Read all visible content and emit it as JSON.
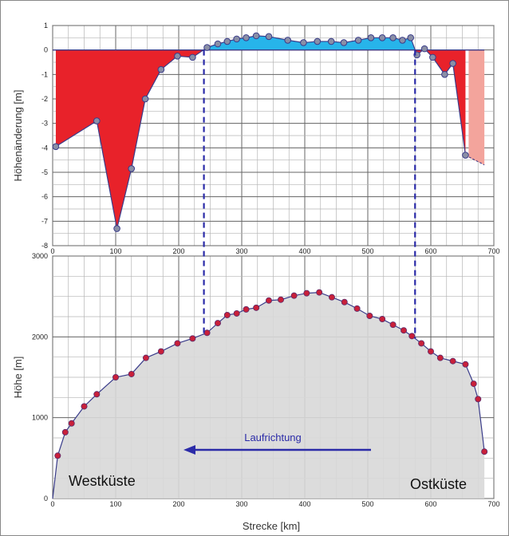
{
  "chart_data": [
    {
      "id": "top",
      "type": "area",
      "title": "",
      "xlabel": "",
      "ylabel": "Höhenänderung [m]",
      "xlim": [
        0,
        700
      ],
      "ylim": [
        -8,
        1
      ],
      "grid": true,
      "xticks": [
        0,
        100,
        200,
        300,
        400,
        500,
        600,
        700
      ],
      "xtick_labels": [
        "0",
        "100",
        "200",
        "300",
        "400",
        "500",
        "600",
        "700"
      ],
      "yticks": [
        1,
        0,
        -1,
        -2,
        -3,
        -4,
        -5,
        -6,
        -7,
        -8
      ],
      "ytick_labels": [
        "1",
        "0",
        "-1",
        "-2",
        "-3",
        "-4",
        "-5",
        "-6",
        "-7",
        "-8"
      ],
      "colors": {
        "negative": "#e8222a",
        "positive": "#27b4ea",
        "extrapolated": "#f3a49c",
        "marker": "#8a8fa6",
        "line": "#3a3c8a"
      },
      "series": [
        {
          "x": [
            5,
            70,
            102,
            125,
            147,
            172,
            198,
            222,
            245,
            262,
            277,
            292,
            307,
            323,
            343,
            373,
            398,
            420,
            442,
            462,
            485,
            505,
            523,
            540,
            555,
            568,
            578,
            590,
            603,
            622,
            635,
            655
          ],
          "y": [
            -3.95,
            -2.9,
            -7.3,
            -4.85,
            -2.0,
            -0.8,
            -0.25,
            -0.3,
            0.1,
            0.25,
            0.35,
            0.45,
            0.5,
            0.58,
            0.55,
            0.4,
            0.3,
            0.35,
            0.35,
            0.3,
            0.4,
            0.5,
            0.5,
            0.5,
            0.4,
            0.5,
            -0.2,
            0.05,
            -0.3,
            -1.0,
            -0.55,
            -4.3
          ]
        }
      ],
      "extrapolated_region": {
        "x": [
          660,
          685
        ],
        "y_end": -4.7
      }
    },
    {
      "id": "bottom",
      "type": "area",
      "title": "",
      "xlabel": "Strecke [km]",
      "ylabel": "Höhe [m]",
      "xlim": [
        0,
        700
      ],
      "ylim": [
        0,
        3000
      ],
      "grid": true,
      "xticks": [
        0,
        100,
        200,
        300,
        400,
        500,
        600,
        700
      ],
      "xtick_labels": [
        "0",
        "100",
        "200",
        "300",
        "400",
        "500",
        "600",
        "700"
      ],
      "yticks": [
        0,
        1000,
        2000,
        3000
      ],
      "ytick_labels": [
        "0",
        "1000",
        "2000",
        "3000"
      ],
      "colors": {
        "fill": "#d8d8d8",
        "marker": "#c8203a",
        "marker_outline": "#5a2a6a",
        "line": "#3a3c8a"
      },
      "series": [
        {
          "x": [
            0,
            8,
            20,
            30,
            50,
            70,
            100,
            125,
            148,
            172,
            198,
            222,
            245,
            262,
            277,
            292,
            307,
            323,
            343,
            362,
            383,
            403,
            423,
            443,
            463,
            483,
            503,
            523,
            540,
            557,
            570,
            585,
            600,
            615,
            635,
            655,
            668,
            675,
            685
          ],
          "y": [
            0,
            530,
            820,
            930,
            1140,
            1290,
            1500,
            1540,
            1740,
            1820,
            1920,
            1980,
            2050,
            2170,
            2270,
            2290,
            2340,
            2360,
            2450,
            2460,
            2510,
            2540,
            2550,
            2490,
            2430,
            2350,
            2260,
            2220,
            2150,
            2080,
            2010,
            1920,
            1820,
            1740,
            1700,
            1660,
            1420,
            1230,
            580
          ]
        }
      ],
      "annotations": {
        "left": "Westküste",
        "right": "Ostküste",
        "arrow": "Laufrichtung"
      }
    }
  ],
  "links": {
    "x_values": [
      240,
      575
    ]
  }
}
